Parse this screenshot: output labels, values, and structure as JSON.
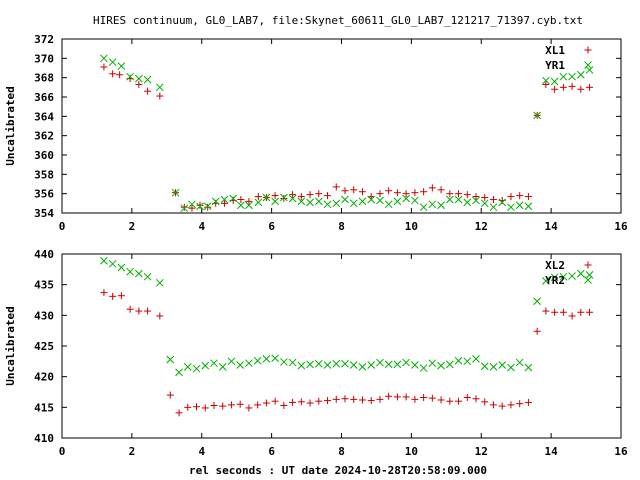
{
  "title": "HIRES continuum, GL0_LAB7, file:Skynet_60611_GL0_LAB7_121217_71397.cyb.txt",
  "xlabel": "rel seconds : UT date 2024-10-28T20:58:09.000",
  "colors": {
    "XL": "#cc0000",
    "YR": "#00b000",
    "axis": "#000000"
  },
  "chart_data": [
    {
      "type": "scatter",
      "ylabel": "Uncalibrated",
      "xlim": [
        0,
        16
      ],
      "ylim": [
        354,
        372
      ],
      "xticks": [
        0,
        2,
        4,
        6,
        8,
        10,
        12,
        14,
        16
      ],
      "yticks": [
        354,
        356,
        358,
        360,
        362,
        364,
        366,
        368,
        370,
        372
      ],
      "legend_position": "top-right",
      "series": [
        {
          "name": "XL1",
          "marker": "plus",
          "color": "#cc0000",
          "points": [
            [
              1.2,
              369.1
            ],
            [
              1.45,
              368.4
            ],
            [
              1.65,
              368.3
            ],
            [
              1.95,
              367.9
            ],
            [
              2.2,
              367.3
            ],
            [
              2.45,
              366.6
            ],
            [
              2.8,
              366.1
            ],
            [
              3.25,
              356.1
            ],
            [
              3.5,
              354.6
            ],
            [
              3.72,
              354.5
            ],
            [
              3.95,
              354.8
            ],
            [
              4.17,
              354.6
            ],
            [
              4.4,
              355.0
            ],
            [
              4.65,
              355.0
            ],
            [
              4.9,
              355.3
            ],
            [
              5.12,
              355.4
            ],
            [
              5.35,
              355.2
            ],
            [
              5.62,
              355.7
            ],
            [
              5.85,
              355.6
            ],
            [
              6.1,
              355.8
            ],
            [
              6.35,
              355.5
            ],
            [
              6.6,
              355.9
            ],
            [
              6.85,
              355.7
            ],
            [
              7.1,
              355.9
            ],
            [
              7.35,
              356.0
            ],
            [
              7.6,
              355.8
            ],
            [
              7.85,
              356.7
            ],
            [
              8.1,
              356.3
            ],
            [
              8.35,
              356.4
            ],
            [
              8.6,
              356.2
            ],
            [
              8.85,
              355.7
            ],
            [
              9.1,
              356.0
            ],
            [
              9.35,
              356.3
            ],
            [
              9.6,
              356.1
            ],
            [
              9.85,
              356.0
            ],
            [
              10.1,
              356.1
            ],
            [
              10.35,
              356.2
            ],
            [
              10.6,
              356.6
            ],
            [
              10.85,
              356.4
            ],
            [
              11.1,
              356.0
            ],
            [
              11.35,
              356.0
            ],
            [
              11.6,
              355.9
            ],
            [
              11.85,
              355.7
            ],
            [
              12.1,
              355.6
            ],
            [
              12.35,
              355.4
            ],
            [
              12.6,
              355.3
            ],
            [
              12.85,
              355.7
            ],
            [
              13.1,
              355.8
            ],
            [
              13.35,
              355.7
            ],
            [
              13.6,
              364.1
            ],
            [
              13.85,
              367.3
            ],
            [
              14.1,
              366.8
            ],
            [
              14.35,
              367.0
            ],
            [
              14.6,
              367.1
            ],
            [
              14.85,
              366.8
            ],
            [
              15.1,
              367.0
            ]
          ]
        },
        {
          "name": "YR1",
          "marker": "cross",
          "color": "#00b000",
          "points": [
            [
              1.2,
              370.0
            ],
            [
              1.45,
              369.6
            ],
            [
              1.7,
              369.2
            ],
            [
              1.95,
              368.1
            ],
            [
              2.2,
              367.9
            ],
            [
              2.45,
              367.8
            ],
            [
              2.8,
              367.0
            ],
            [
              3.25,
              356.1
            ],
            [
              3.5,
              354.5
            ],
            [
              3.72,
              354.9
            ],
            [
              3.95,
              354.7
            ],
            [
              4.17,
              354.7
            ],
            [
              4.4,
              355.2
            ],
            [
              4.65,
              355.4
            ],
            [
              4.9,
              355.5
            ],
            [
              5.12,
              354.8
            ],
            [
              5.35,
              354.8
            ],
            [
              5.62,
              355.1
            ],
            [
              5.85,
              355.6
            ],
            [
              6.1,
              355.2
            ],
            [
              6.35,
              355.6
            ],
            [
              6.6,
              355.5
            ],
            [
              6.85,
              355.2
            ],
            [
              7.1,
              355.1
            ],
            [
              7.35,
              355.2
            ],
            [
              7.6,
              354.9
            ],
            [
              7.85,
              355.0
            ],
            [
              8.1,
              355.4
            ],
            [
              8.35,
              355.0
            ],
            [
              8.6,
              355.2
            ],
            [
              8.85,
              355.4
            ],
            [
              9.1,
              355.3
            ],
            [
              9.35,
              354.9
            ],
            [
              9.6,
              355.2
            ],
            [
              9.85,
              355.5
            ],
            [
              10.1,
              355.3
            ],
            [
              10.35,
              354.6
            ],
            [
              10.6,
              354.9
            ],
            [
              10.85,
              354.8
            ],
            [
              11.1,
              355.4
            ],
            [
              11.35,
              355.4
            ],
            [
              11.6,
              355.1
            ],
            [
              11.85,
              355.3
            ],
            [
              12.1,
              355.0
            ],
            [
              12.35,
              354.6
            ],
            [
              12.6,
              355.1
            ],
            [
              12.85,
              354.6
            ],
            [
              13.1,
              354.8
            ],
            [
              13.35,
              354.7
            ],
            [
              13.6,
              364.1
            ],
            [
              13.85,
              367.7
            ],
            [
              14.1,
              367.6
            ],
            [
              14.35,
              368.1
            ],
            [
              14.6,
              368.1
            ],
            [
              14.85,
              368.3
            ],
            [
              15.1,
              368.8
            ]
          ]
        }
      ]
    },
    {
      "type": "scatter",
      "ylabel": "Uncalibrated",
      "xlim": [
        0,
        16
      ],
      "ylim": [
        410,
        440
      ],
      "xticks": [
        0,
        2,
        4,
        6,
        8,
        10,
        12,
        14,
        16
      ],
      "yticks": [
        410,
        415,
        420,
        425,
        430,
        435,
        440
      ],
      "legend_position": "top-right",
      "series": [
        {
          "name": "XL2",
          "marker": "plus",
          "color": "#cc0000",
          "points": [
            [
              1.2,
              433.7
            ],
            [
              1.45,
              433.1
            ],
            [
              1.7,
              433.2
            ],
            [
              1.95,
              431.0
            ],
            [
              2.2,
              430.7
            ],
            [
              2.45,
              430.7
            ],
            [
              2.8,
              429.9
            ],
            [
              3.1,
              417.0
            ],
            [
              3.35,
              414.1
            ],
            [
              3.6,
              415.0
            ],
            [
              3.85,
              415.1
            ],
            [
              4.1,
              414.9
            ],
            [
              4.35,
              415.3
            ],
            [
              4.6,
              415.2
            ],
            [
              4.85,
              415.4
            ],
            [
              5.1,
              415.5
            ],
            [
              5.35,
              414.9
            ],
            [
              5.6,
              415.4
            ],
            [
              5.85,
              415.7
            ],
            [
              6.1,
              416.0
            ],
            [
              6.35,
              415.3
            ],
            [
              6.6,
              415.8
            ],
            [
              6.85,
              415.9
            ],
            [
              7.1,
              415.7
            ],
            [
              7.35,
              416.0
            ],
            [
              7.6,
              416.1
            ],
            [
              7.85,
              416.3
            ],
            [
              8.1,
              416.4
            ],
            [
              8.35,
              416.3
            ],
            [
              8.6,
              416.2
            ],
            [
              8.85,
              416.1
            ],
            [
              9.1,
              416.3
            ],
            [
              9.35,
              416.8
            ],
            [
              9.6,
              416.7
            ],
            [
              9.85,
              416.7
            ],
            [
              10.1,
              416.3
            ],
            [
              10.35,
              416.6
            ],
            [
              10.6,
              416.5
            ],
            [
              10.85,
              416.2
            ],
            [
              11.1,
              416.0
            ],
            [
              11.35,
              416.0
            ],
            [
              11.6,
              416.6
            ],
            [
              11.85,
              416.4
            ],
            [
              12.1,
              415.9
            ],
            [
              12.35,
              415.4
            ],
            [
              12.6,
              415.2
            ],
            [
              12.85,
              415.4
            ],
            [
              13.1,
              415.6
            ],
            [
              13.35,
              415.8
            ],
            [
              13.6,
              427.4
            ],
            [
              13.85,
              430.7
            ],
            [
              14.1,
              430.5
            ],
            [
              14.35,
              430.5
            ],
            [
              14.6,
              429.9
            ],
            [
              14.85,
              430.5
            ],
            [
              15.1,
              430.5
            ]
          ]
        },
        {
          "name": "YR2",
          "marker": "cross",
          "color": "#00b000",
          "points": [
            [
              1.2,
              438.9
            ],
            [
              1.45,
              438.4
            ],
            [
              1.7,
              437.8
            ],
            [
              1.95,
              437.1
            ],
            [
              2.2,
              436.8
            ],
            [
              2.45,
              436.3
            ],
            [
              2.8,
              435.3
            ],
            [
              3.1,
              422.8
            ],
            [
              3.35,
              420.7
            ],
            [
              3.6,
              421.6
            ],
            [
              3.85,
              421.3
            ],
            [
              4.1,
              421.8
            ],
            [
              4.35,
              422.2
            ],
            [
              4.6,
              421.6
            ],
            [
              4.85,
              422.5
            ],
            [
              5.1,
              421.9
            ],
            [
              5.35,
              422.2
            ],
            [
              5.6,
              422.6
            ],
            [
              5.85,
              422.9
            ],
            [
              6.1,
              423.0
            ],
            [
              6.35,
              422.4
            ],
            [
              6.6,
              422.3
            ],
            [
              6.85,
              421.8
            ],
            [
              7.1,
              422.0
            ],
            [
              7.35,
              422.1
            ],
            [
              7.6,
              421.9
            ],
            [
              7.85,
              422.1
            ],
            [
              8.1,
              422.1
            ],
            [
              8.35,
              421.9
            ],
            [
              8.6,
              421.6
            ],
            [
              8.85,
              421.9
            ],
            [
              9.1,
              422.3
            ],
            [
              9.35,
              422.0
            ],
            [
              9.6,
              422.0
            ],
            [
              9.85,
              422.3
            ],
            [
              10.1,
              421.9
            ],
            [
              10.35,
              421.4
            ],
            [
              10.6,
              422.2
            ],
            [
              10.85,
              421.8
            ],
            [
              11.1,
              422.0
            ],
            [
              11.35,
              422.6
            ],
            [
              11.6,
              422.5
            ],
            [
              11.85,
              422.9
            ],
            [
              12.1,
              421.7
            ],
            [
              12.35,
              421.6
            ],
            [
              12.6,
              421.9
            ],
            [
              12.85,
              421.5
            ],
            [
              13.1,
              422.3
            ],
            [
              13.35,
              421.5
            ],
            [
              13.6,
              432.3
            ],
            [
              13.85,
              435.6
            ],
            [
              14.1,
              436.2
            ],
            [
              14.35,
              436.3
            ],
            [
              14.6,
              436.4
            ],
            [
              14.85,
              436.8
            ],
            [
              15.1,
              436.6
            ]
          ]
        }
      ]
    }
  ]
}
